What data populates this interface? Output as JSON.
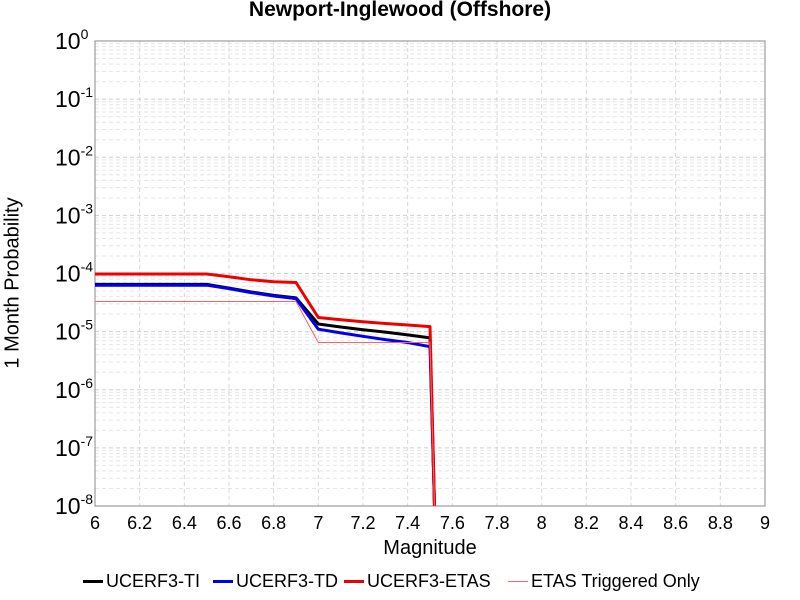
{
  "chart_data": {
    "type": "line",
    "title": "Newport-Inglewood (Offshore)",
    "xlabel": "Magnitude",
    "ylabel": "1 Month Probability",
    "xlim": [
      6,
      9
    ],
    "ylim": [
      1e-08,
      1
    ],
    "yscale": "log",
    "xticks": [
      "6",
      "6.2",
      "6.4",
      "6.6",
      "6.8",
      "7",
      "7.2",
      "7.4",
      "7.6",
      "7.8",
      "8",
      "8.2",
      "8.4",
      "8.6",
      "8.8",
      "9"
    ],
    "ytick_base": "10",
    "ytick_exponents": [
      "0",
      "-1",
      "-2",
      "-3",
      "-4",
      "-5",
      "-6",
      "-7",
      "-8"
    ],
    "grid": true,
    "legend_position": "bottom",
    "series": [
      {
        "name": "UCERF3-TI",
        "color": "#000000",
        "x": [
          6.0,
          6.1,
          6.2,
          6.3,
          6.4,
          6.5,
          6.6,
          6.7,
          6.8,
          6.9,
          7.0,
          7.1,
          7.2,
          7.3,
          7.4,
          7.5,
          7.52
        ],
        "y": [
          6.5e-05,
          6.5e-05,
          6.5e-05,
          6.5e-05,
          6.5e-05,
          6.5e-05,
          5.6e-05,
          4.8e-05,
          4.2e-05,
          3.8e-05,
          1.35e-05,
          1.2e-05,
          1.08e-05,
          9.8e-06,
          8.8e-06,
          7.8e-06,
          1e-08
        ]
      },
      {
        "name": "UCERF3-TD",
        "color": "#0000ee",
        "x": [
          6.0,
          6.1,
          6.2,
          6.3,
          6.4,
          6.5,
          6.6,
          6.7,
          6.8,
          6.9,
          7.0,
          7.1,
          7.2,
          7.3,
          7.4,
          7.5,
          7.52
        ],
        "y": [
          6.3e-05,
          6.3e-05,
          6.3e-05,
          6.3e-05,
          6.3e-05,
          6.3e-05,
          5.5e-05,
          4.7e-05,
          4.1e-05,
          3.7e-05,
          1.1e-05,
          9.5e-06,
          8.3e-06,
          7.3e-06,
          6.5e-06,
          5.5e-06,
          1e-08
        ]
      },
      {
        "name": "UCERF3-ETAS",
        "color": "#ee0000",
        "x": [
          6.0,
          6.1,
          6.2,
          6.3,
          6.4,
          6.5,
          6.6,
          6.7,
          6.8,
          6.9,
          7.0,
          7.1,
          7.2,
          7.3,
          7.4,
          7.5,
          7.52
        ],
        "y": [
          9.8e-05,
          9.8e-05,
          9.8e-05,
          9.8e-05,
          9.8e-05,
          9.8e-05,
          8.8e-05,
          7.8e-05,
          7.2e-05,
          7e-05,
          1.75e-05,
          1.6e-05,
          1.48e-05,
          1.38e-05,
          1.3e-05,
          1.22e-05,
          1e-08
        ]
      },
      {
        "name": "ETAS Triggered Only",
        "color": "#ff6060",
        "x": [
          6.0,
          6.1,
          6.2,
          6.3,
          6.4,
          6.5,
          6.6,
          6.7,
          6.8,
          6.9,
          7.0,
          7.1,
          7.2,
          7.3,
          7.4,
          7.5,
          7.52
        ],
        "y": [
          3.3e-05,
          3.3e-05,
          3.3e-05,
          3.3e-05,
          3.3e-05,
          3.3e-05,
          3.3e-05,
          3.3e-05,
          3.3e-05,
          3.3e-05,
          6.5e-06,
          6.5e-06,
          6.5e-06,
          6.5e-06,
          6.5e-06,
          6.5e-06,
          1e-08
        ]
      }
    ]
  }
}
